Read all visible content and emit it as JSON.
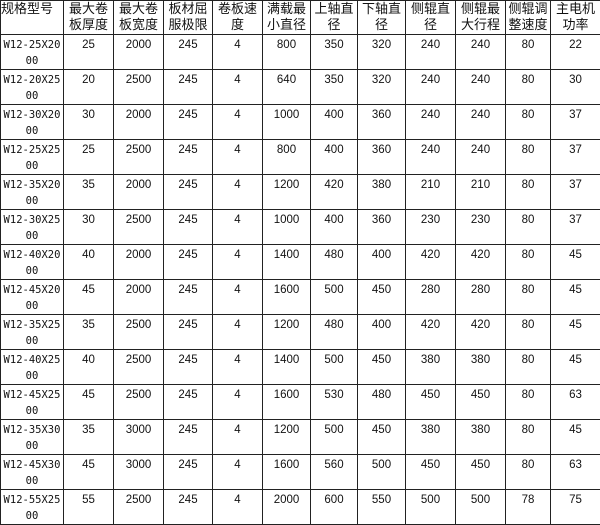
{
  "headers": [
    "规格型号",
    "最大卷板厚度",
    "最大卷板宽度",
    "板材屈服极限",
    "卷板速度",
    "满载最小直径",
    "上轴直径",
    "下轴直径",
    "侧辊直径",
    "侧辊最大行程",
    "侧辊调整速度",
    "主电机功率"
  ],
  "rows": [
    [
      "W12-25X2000",
      "25",
      "2000",
      "245",
      "4",
      "800",
      "350",
      "320",
      "240",
      "240",
      "80",
      "22"
    ],
    [
      "W12-20X2500",
      "20",
      "2500",
      "245",
      "4",
      "640",
      "350",
      "320",
      "240",
      "240",
      "80",
      "30"
    ],
    [
      "W12-30X2000",
      "30",
      "2000",
      "245",
      "4",
      "1000",
      "400",
      "360",
      "240",
      "240",
      "80",
      "37"
    ],
    [
      "W12-25X2500",
      "25",
      "2500",
      "245",
      "4",
      "800",
      "400",
      "360",
      "240",
      "240",
      "80",
      "37"
    ],
    [
      "W12-35X2000",
      "35",
      "2000",
      "245",
      "4",
      "1200",
      "420",
      "380",
      "210",
      "210",
      "80",
      "37"
    ],
    [
      "W12-30X2500",
      "30",
      "2500",
      "245",
      "4",
      "1000",
      "400",
      "360",
      "230",
      "230",
      "80",
      "37"
    ],
    [
      "W12-40X2000",
      "40",
      "2000",
      "245",
      "4",
      "1400",
      "480",
      "400",
      "420",
      "420",
      "80",
      "45"
    ],
    [
      "W12-45X2000",
      "45",
      "2000",
      "245",
      "4",
      "1600",
      "500",
      "450",
      "280",
      "280",
      "80",
      "45"
    ],
    [
      "W12-35X2500",
      "35",
      "2500",
      "245",
      "4",
      "1200",
      "480",
      "400",
      "420",
      "420",
      "80",
      "45"
    ],
    [
      "W12-40X2500",
      "40",
      "2500",
      "245",
      "4",
      "1400",
      "500",
      "450",
      "380",
      "380",
      "80",
      "45"
    ],
    [
      "W12-45X2500",
      "45",
      "2500",
      "245",
      "4",
      "1600",
      "530",
      "480",
      "450",
      "450",
      "80",
      "63"
    ],
    [
      "W12-35X3000",
      "35",
      "3000",
      "245",
      "4",
      "1200",
      "500",
      "450",
      "380",
      "380",
      "80",
      "45"
    ],
    [
      "W12-45X3000",
      "45",
      "3000",
      "245",
      "4",
      "1600",
      "560",
      "500",
      "450",
      "450",
      "80",
      "63"
    ],
    [
      "W12-55X2500",
      "55",
      "2500",
      "245",
      "4",
      "2000",
      "600",
      "550",
      "500",
      "500",
      "78",
      "75"
    ]
  ]
}
